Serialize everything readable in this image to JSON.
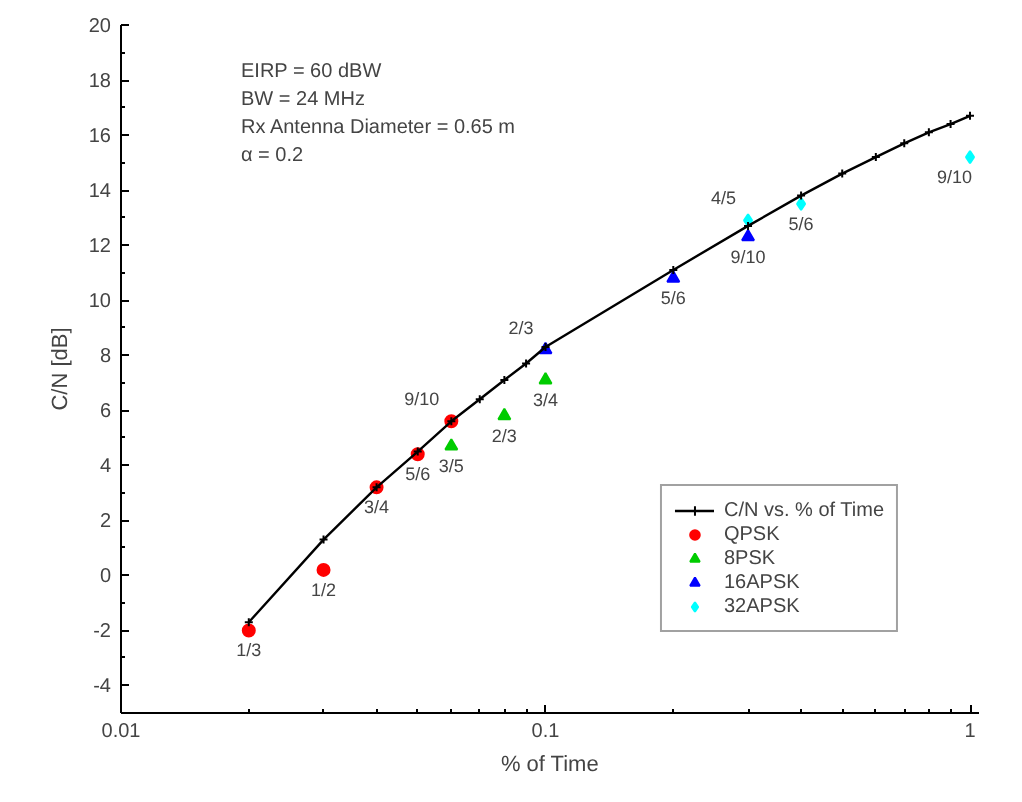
{
  "chart_data": {
    "type": "scatter",
    "xlabel": "% of Time",
    "ylabel": "C/N [dB]",
    "log": "x",
    "xlim": [
      0.01,
      1.05
    ],
    "ylim": [
      -5,
      20
    ],
    "xticks": [
      0.01,
      0.1,
      1
    ],
    "yticks": [
      -4,
      -2,
      0,
      2,
      4,
      6,
      8,
      10,
      12,
      14,
      16,
      18,
      20
    ],
    "grid": false,
    "legend": "bottom right",
    "series": [
      {
        "name": "C/N vs. % of Time",
        "type": "line",
        "color": "#000000",
        "marker": "cross",
        "line_style": "solid",
        "x": [
          0.02,
          0.03,
          0.04,
          0.05,
          0.06,
          0.07,
          0.08,
          0.09,
          0.1,
          0.2,
          0.3,
          0.4,
          0.5,
          0.6,
          0.7,
          0.8,
          0.9,
          1
        ],
        "values": [
          -1.7,
          1.3,
          3.2,
          4.5,
          5.6,
          6.4,
          7.1,
          7.7,
          8.3,
          11.1,
          12.7,
          13.8,
          14.6,
          15.2,
          15.7,
          16.1,
          16.4,
          16.7
        ]
      },
      {
        "name": "QPSK",
        "color": "#ff0000",
        "marker": "circle",
        "x": [
          0.02,
          0.03,
          0.04,
          0.05,
          0.06
        ],
        "values": [
          -2.0,
          0.2,
          3.2,
          4.4,
          5.6
        ]
      },
      {
        "name": "8PSK",
        "color": "#00cc00",
        "marker": "triangle",
        "x": [
          0.06,
          0.08,
          0.1
        ],
        "values": [
          4.7,
          5.8,
          7.1
        ]
      },
      {
        "name": "16APSK",
        "color": "#0000ff",
        "marker": "triangle",
        "x": [
          0.1,
          0.2,
          0.3
        ],
        "values": [
          8.2,
          10.8,
          12.3
        ]
      },
      {
        "name": "32APSK",
        "color": "#00ffff",
        "marker": "diamond",
        "x": [
          0.3,
          0.4,
          1
        ],
        "values": [
          12.9,
          13.5,
          15.2
        ]
      }
    ],
    "annotations": [
      "EIRP = 60 dBW",
      "BW = 24 MHz",
      "Rx Antenna Diameter = 0.65 m",
      "α = 0.2",
      {
        "text": "1/3",
        "x": 0.02,
        "y": -2.0
      },
      {
        "text": "1/2",
        "x": 0.03,
        "y": 0.2
      },
      {
        "text": "3/4",
        "x": 0.04,
        "y": 3.2
      },
      {
        "text": "5/6",
        "x": 0.05,
        "y": 4.4
      },
      {
        "text": "9/10",
        "x": 0.06,
        "y": 5.6
      },
      {
        "text": "3/5",
        "x": 0.06,
        "y": 4.7
      },
      {
        "text": "2/3",
        "x": 0.08,
        "y": 5.8
      },
      {
        "text": "3/4",
        "x": 0.1,
        "y": 7.1
      },
      {
        "text": "2/3",
        "x": 0.1,
        "y": 8.2
      },
      {
        "text": "5/6",
        "x": 0.2,
        "y": 10.8
      },
      {
        "text": "9/10",
        "x": 0.3,
        "y": 12.3
      },
      {
        "text": "4/5",
        "x": 0.3,
        "y": 12.9
      },
      {
        "text": "5/6",
        "x": 0.4,
        "y": 13.5
      },
      {
        "text": "9/10",
        "x": 1,
        "y": 15.2
      }
    ]
  }
}
